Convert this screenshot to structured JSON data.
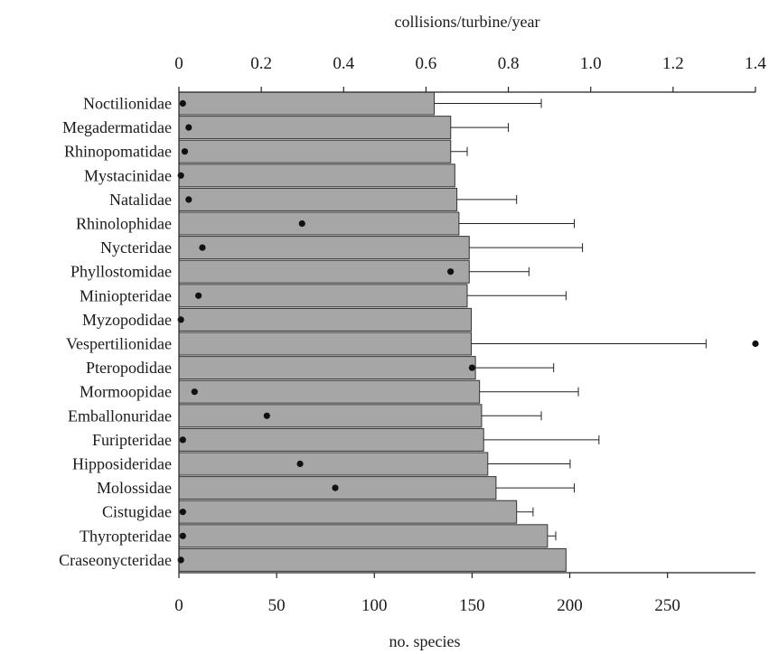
{
  "chart_data": {
    "type": "bar",
    "orientation": "horizontal",
    "top_axis": {
      "label": "collisions/turbine/year",
      "ticks": [
        "0",
        "0.2",
        "0.4",
        "0.6",
        "0.8",
        "1.0",
        "1.2",
        "1.4"
      ],
      "range": [
        0,
        1.4
      ]
    },
    "bottom_axis": {
      "label": "no. species",
      "ticks": [
        "0",
        "50",
        "100",
        "150",
        "200",
        "250"
      ],
      "range": [
        0,
        295
      ]
    },
    "categories": [
      "Noctilionidae",
      "Megadermatidae",
      "Rhinopomatidae",
      "Mystacinidae",
      "Natalidae",
      "Rhinolophidae",
      "Nycteridae",
      "Phyllostomidae",
      "Miniopteridae",
      "Myzopodidae",
      "Vespertilionidae",
      "Pteropodidae",
      "Mormoopidae",
      "Emballonuridae",
      "Furipteridae",
      "Hipposideridae",
      "Molossidae",
      "Cistugidae",
      "Thyropteridae",
      "Craseonycteridae"
    ],
    "series": [
      {
        "axis": "top",
        "values": [
          0.62,
          0.66,
          0.66,
          0.67,
          0.675,
          0.68,
          0.705,
          0.705,
          0.7,
          0.71,
          0.71,
          0.72,
          0.73,
          0.735,
          0.74,
          0.75,
          0.77,
          0.82,
          0.895,
          0.94
        ],
        "error_upper": [
          0.88,
          0.8,
          0.7,
          0.67,
          0.82,
          0.96,
          0.98,
          0.85,
          0.94,
          0.71,
          1.28,
          0.91,
          0.97,
          0.88,
          1.02,
          0.95,
          0.96,
          0.86,
          0.915,
          0.94
        ]
      },
      {
        "axis": "bottom",
        "points": [
          2,
          5,
          3,
          1,
          5,
          63,
          12,
          139,
          10,
          1,
          295,
          150,
          8,
          45,
          2,
          62,
          80,
          2,
          2,
          1
        ]
      }
    ]
  }
}
